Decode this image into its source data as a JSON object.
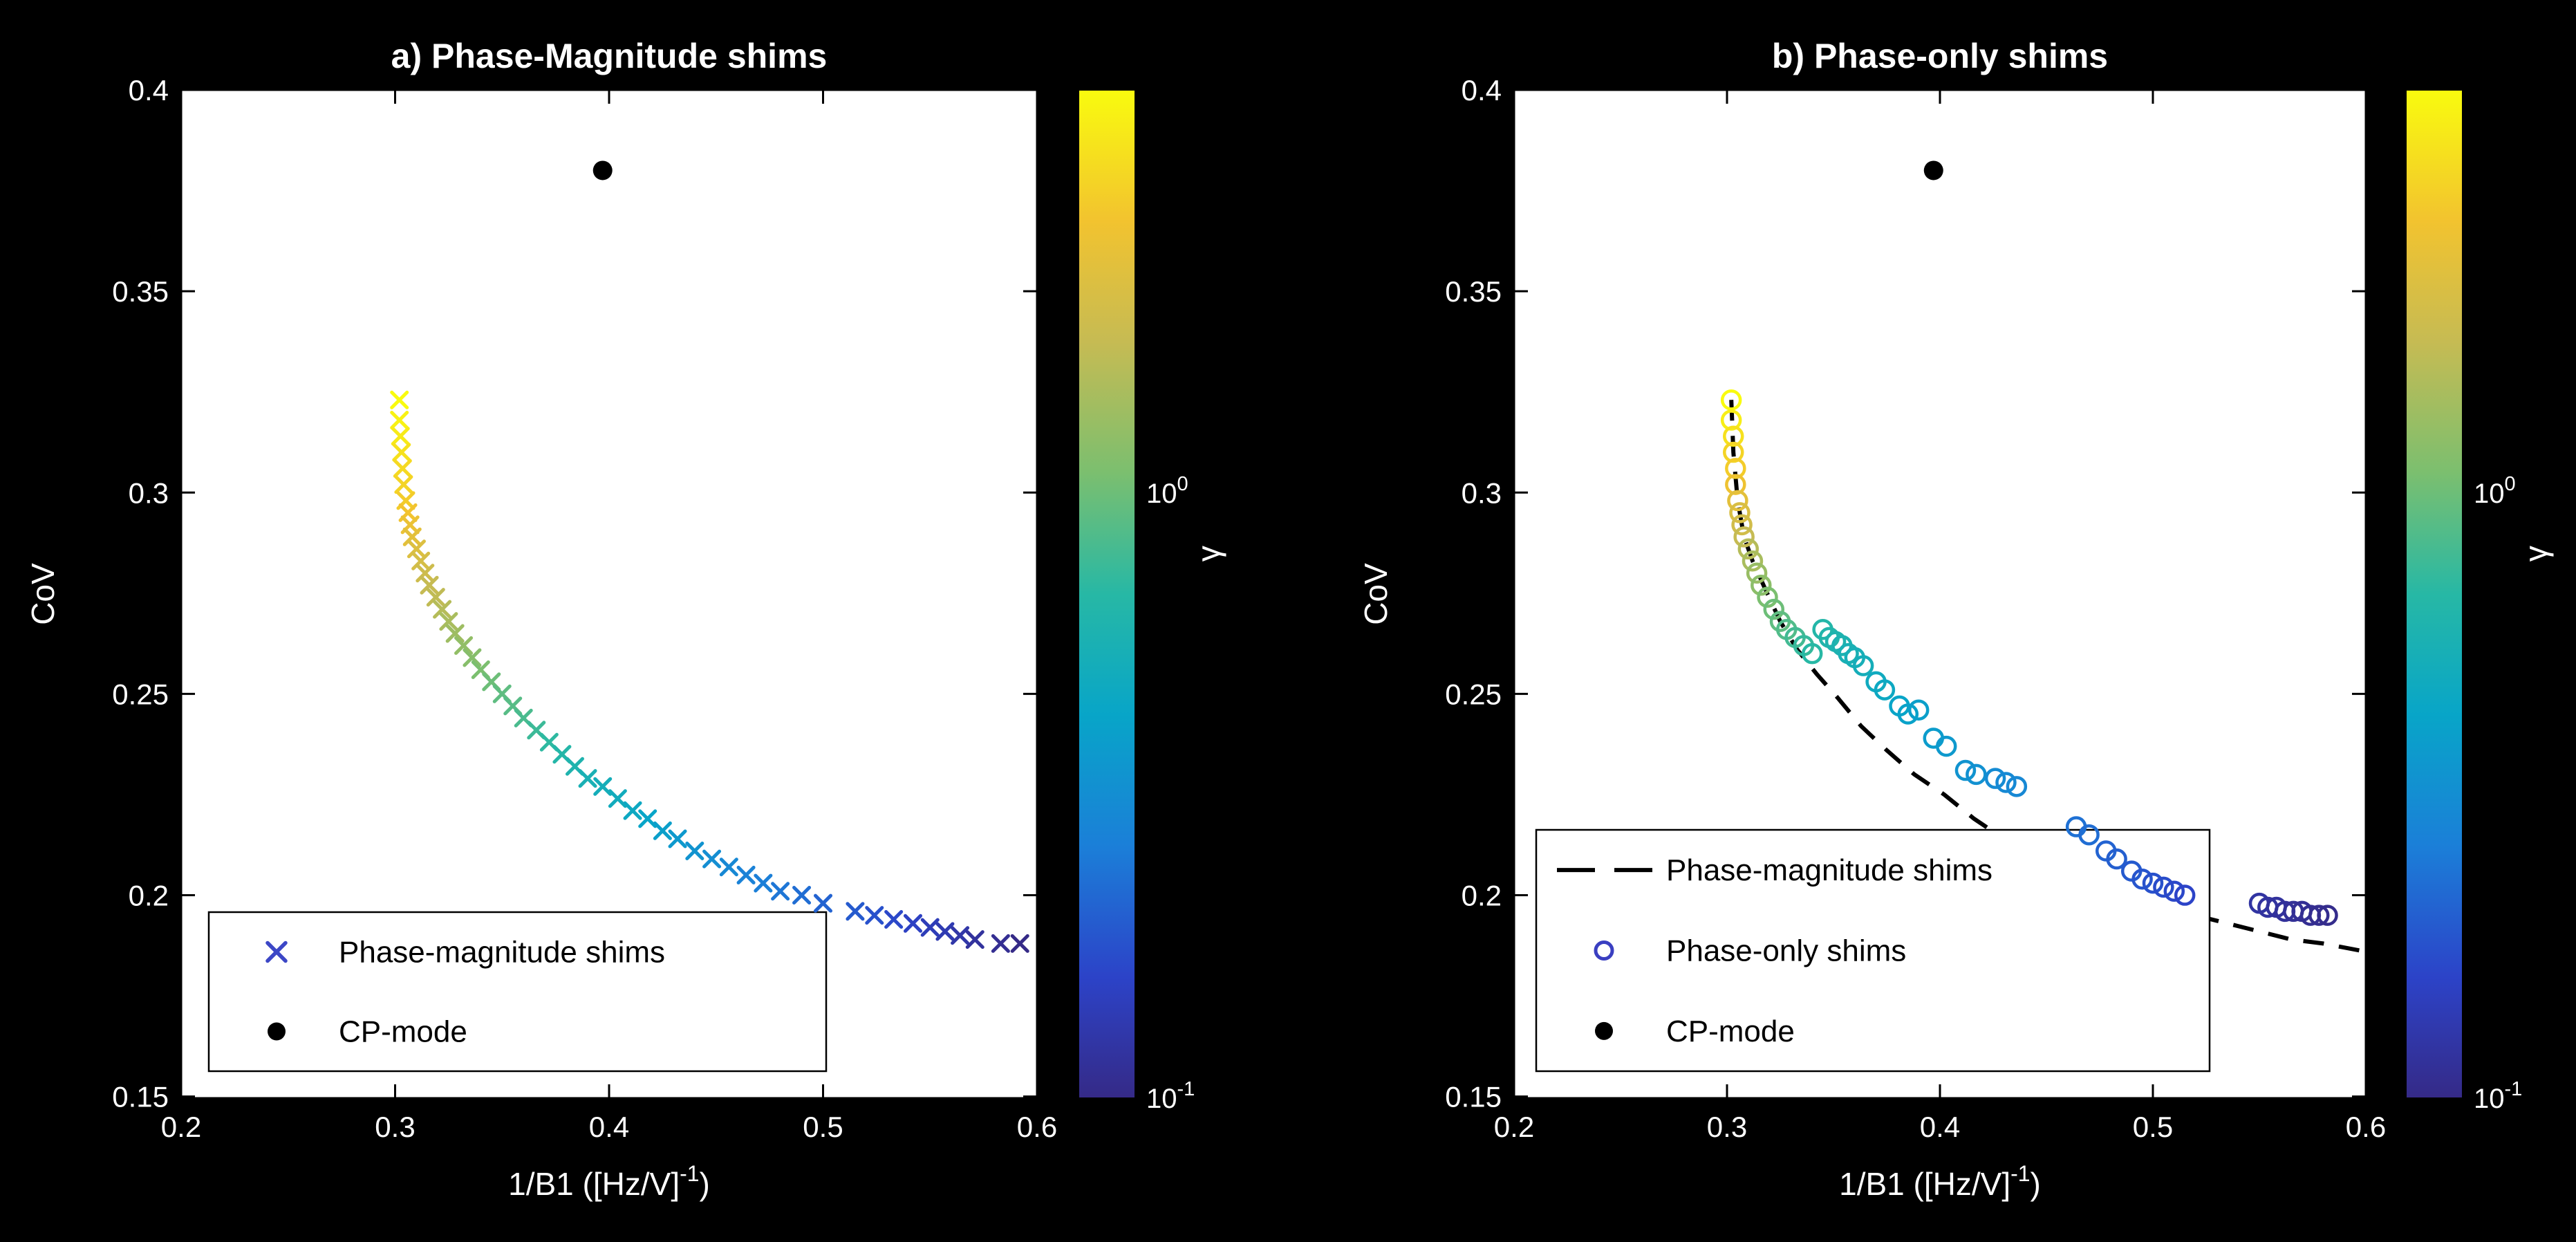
{
  "figure": {
    "background": "#000000",
    "text_color": "#ffffff",
    "axes_background": "#ffffff",
    "axes_line_color": "#000000"
  },
  "colormap": [
    {
      "t": 0.0,
      "c": "#352a87"
    },
    {
      "t": 0.12,
      "c": "#2c43c8"
    },
    {
      "t": 0.25,
      "c": "#1b7fd8"
    },
    {
      "t": 0.38,
      "c": "#08a5c8"
    },
    {
      "t": 0.5,
      "c": "#27b8a5"
    },
    {
      "t": 0.62,
      "c": "#7bbf6f"
    },
    {
      "t": 0.75,
      "c": "#c6bb53"
    },
    {
      "t": 0.87,
      "c": "#f2c32f"
    },
    {
      "t": 1.0,
      "c": "#f9fb0e"
    }
  ],
  "chart_data": [
    {
      "type": "scatter",
      "title": "a) Phase-Magnitude shims",
      "xlabel": {
        "text": "1/B1 ([Hz/V]",
        "sup": "-1",
        "suffix": ")"
      },
      "ylabel": "CoV",
      "xlim": [
        0.2,
        0.6
      ],
      "ylim": [
        0.1496,
        0.4
      ],
      "xticks": [
        0.2,
        0.3,
        0.4,
        0.5,
        0.6
      ],
      "yticks": [
        0.15,
        0.2,
        0.25,
        0.3,
        0.35,
        0.4
      ],
      "xtick_labels": [
        "0.2",
        "0.3",
        "0.4",
        "0.5",
        "0.6"
      ],
      "ytick_labels": [
        "0.15",
        "0.2",
        "0.25",
        "0.3",
        "0.35",
        "0.4"
      ],
      "series": [
        {
          "name": "Phase-magnitude shims",
          "marker": "x",
          "points": [
            [
              0.302,
              0.323,
              1.0
            ],
            [
              0.302,
              0.318,
              0.98
            ],
            [
              0.3025,
              0.314,
              0.96
            ],
            [
              0.303,
              0.31,
              0.94
            ],
            [
              0.3035,
              0.306,
              0.92
            ],
            [
              0.304,
              0.302,
              0.91
            ],
            [
              0.305,
              0.298,
              0.89
            ],
            [
              0.306,
              0.295,
              0.87
            ],
            [
              0.307,
              0.292,
              0.85
            ],
            [
              0.308,
              0.289,
              0.83
            ],
            [
              0.31,
              0.286,
              0.81
            ],
            [
              0.312,
              0.283,
              0.79
            ],
            [
              0.314,
              0.28,
              0.77
            ],
            [
              0.316,
              0.277,
              0.75
            ],
            [
              0.319,
              0.274,
              0.74
            ],
            [
              0.322,
              0.271,
              0.72
            ],
            [
              0.325,
              0.268,
              0.7
            ],
            [
              0.328,
              0.265,
              0.68
            ],
            [
              0.332,
              0.262,
              0.66
            ],
            [
              0.336,
              0.259,
              0.64
            ],
            [
              0.34,
              0.256,
              0.62
            ],
            [
              0.345,
              0.253,
              0.6
            ],
            [
              0.35,
              0.25,
              0.58
            ],
            [
              0.355,
              0.247,
              0.57
            ],
            [
              0.36,
              0.244,
              0.55
            ],
            [
              0.366,
              0.241,
              0.53
            ],
            [
              0.372,
              0.238,
              0.51
            ],
            [
              0.378,
              0.235,
              0.49
            ],
            [
              0.384,
              0.232,
              0.47
            ],
            [
              0.39,
              0.229,
              0.45
            ],
            [
              0.397,
              0.227,
              0.43
            ],
            [
              0.404,
              0.224,
              0.42
            ],
            [
              0.411,
              0.221,
              0.4
            ],
            [
              0.418,
              0.219,
              0.38
            ],
            [
              0.425,
              0.216,
              0.36
            ],
            [
              0.432,
              0.214,
              0.34
            ],
            [
              0.44,
              0.211,
              0.32
            ],
            [
              0.448,
              0.209,
              0.3
            ],
            [
              0.456,
              0.207,
              0.28
            ],
            [
              0.464,
              0.205,
              0.26
            ],
            [
              0.472,
              0.203,
              0.25
            ],
            [
              0.48,
              0.201,
              0.23
            ],
            [
              0.49,
              0.2,
              0.21
            ],
            [
              0.5,
              0.198,
              0.19
            ],
            [
              0.515,
              0.196,
              0.17
            ],
            [
              0.524,
              0.195,
              0.15
            ],
            [
              0.533,
              0.194,
              0.13
            ],
            [
              0.542,
              0.193,
              0.11
            ],
            [
              0.55,
              0.192,
              0.09
            ],
            [
              0.557,
              0.191,
              0.08
            ],
            [
              0.564,
              0.19,
              0.06
            ],
            [
              0.571,
              0.189,
              0.04
            ],
            [
              0.583,
              0.188,
              0.02
            ],
            [
              0.592,
              0.188,
              0.0
            ]
          ]
        },
        {
          "name": "CP-mode",
          "marker": "dot",
          "color": "#000000",
          "points": [
            [
              0.397,
              0.38
            ]
          ]
        }
      ],
      "legend": {
        "entries": [
          {
            "marker": "x",
            "color": "#3c47c6",
            "label": "Phase-magnitude shims"
          },
          {
            "marker": "dot",
            "color": "#000000",
            "label": "CP-mode"
          }
        ]
      },
      "colorbar": {
        "label": "γ",
        "ticks": [
          {
            "t": 0.6,
            "base": "10",
            "exp": "0"
          },
          {
            "t": 0.0,
            "base": "10",
            "exp": "-1"
          }
        ]
      }
    },
    {
      "type": "scatter",
      "title": "b) Phase-only shims",
      "xlabel": {
        "text": "1/B1 ([Hz/V]",
        "sup": "-1",
        "suffix": ")"
      },
      "ylabel": "CoV",
      "xlim": [
        0.2,
        0.6
      ],
      "ylim": [
        0.1496,
        0.4
      ],
      "xticks": [
        0.2,
        0.3,
        0.4,
        0.5,
        0.6
      ],
      "yticks": [
        0.15,
        0.2,
        0.25,
        0.3,
        0.35,
        0.4
      ],
      "xtick_labels": [
        "0.2",
        "0.3",
        "0.4",
        "0.5",
        "0.6"
      ],
      "ytick_labels": [
        "0.15",
        "0.2",
        "0.25",
        "0.3",
        "0.35",
        "0.4"
      ],
      "series": [
        {
          "name": "Phase-magnitude shims",
          "type": "dashed_line",
          "color": "#000000",
          "points": [
            [
              0.302,
              0.323
            ],
            [
              0.303,
              0.31
            ],
            [
              0.305,
              0.298
            ],
            [
              0.308,
              0.289
            ],
            [
              0.312,
              0.283
            ],
            [
              0.318,
              0.276
            ],
            [
              0.325,
              0.268
            ],
            [
              0.333,
              0.261
            ],
            [
              0.342,
              0.255
            ],
            [
              0.352,
              0.249
            ],
            [
              0.363,
              0.242
            ],
            [
              0.375,
              0.236
            ],
            [
              0.388,
              0.23
            ],
            [
              0.402,
              0.225
            ],
            [
              0.416,
              0.219
            ],
            [
              0.43,
              0.214
            ],
            [
              0.445,
              0.21
            ],
            [
              0.46,
              0.206
            ],
            [
              0.475,
              0.202
            ],
            [
              0.49,
              0.199
            ],
            [
              0.505,
              0.197
            ],
            [
              0.52,
              0.195
            ],
            [
              0.535,
              0.193
            ],
            [
              0.55,
              0.191
            ],
            [
              0.565,
              0.189
            ],
            [
              0.58,
              0.188
            ],
            [
              0.6,
              0.186
            ]
          ]
        },
        {
          "name": "Phase-only shims",
          "marker": "o",
          "points": [
            [
              0.302,
              0.323,
              1.0
            ],
            [
              0.302,
              0.318,
              0.97
            ],
            [
              0.303,
              0.314,
              0.94
            ],
            [
              0.303,
              0.31,
              0.91
            ],
            [
              0.304,
              0.306,
              0.89
            ],
            [
              0.304,
              0.302,
              0.86
            ],
            [
              0.305,
              0.298,
              0.83
            ],
            [
              0.306,
              0.295,
              0.8
            ],
            [
              0.307,
              0.292,
              0.78
            ],
            [
              0.308,
              0.289,
              0.75
            ],
            [
              0.31,
              0.286,
              0.72
            ],
            [
              0.312,
              0.283,
              0.7
            ],
            [
              0.314,
              0.28,
              0.67
            ],
            [
              0.316,
              0.277,
              0.65
            ],
            [
              0.319,
              0.274,
              0.62
            ],
            [
              0.322,
              0.271,
              0.6
            ],
            [
              0.325,
              0.268,
              0.58
            ],
            [
              0.328,
              0.266,
              0.56
            ],
            [
              0.332,
              0.264,
              0.54
            ],
            [
              0.336,
              0.262,
              0.52
            ],
            [
              0.34,
              0.26,
              0.5
            ],
            [
              0.345,
              0.266,
              0.49
            ],
            [
              0.348,
              0.264,
              0.48
            ],
            [
              0.351,
              0.263,
              0.47
            ],
            [
              0.354,
              0.262,
              0.46
            ],
            [
              0.357,
              0.26,
              0.45
            ],
            [
              0.36,
              0.259,
              0.44
            ],
            [
              0.364,
              0.257,
              0.43
            ],
            [
              0.37,
              0.253,
              0.41
            ],
            [
              0.374,
              0.251,
              0.4
            ],
            [
              0.381,
              0.247,
              0.38
            ],
            [
              0.385,
              0.245,
              0.37
            ],
            [
              0.39,
              0.246,
              0.36
            ],
            [
              0.397,
              0.239,
              0.35
            ],
            [
              0.403,
              0.237,
              0.34
            ],
            [
              0.412,
              0.231,
              0.32
            ],
            [
              0.417,
              0.23,
              0.31
            ],
            [
              0.426,
              0.229,
              0.29
            ],
            [
              0.431,
              0.228,
              0.285
            ],
            [
              0.436,
              0.227,
              0.28
            ],
            [
              0.464,
              0.217,
              0.22
            ],
            [
              0.47,
              0.215,
              0.21
            ],
            [
              0.478,
              0.211,
              0.19
            ],
            [
              0.483,
              0.209,
              0.18
            ],
            [
              0.49,
              0.206,
              0.17
            ],
            [
              0.495,
              0.204,
              0.16
            ],
            [
              0.5,
              0.203,
              0.15
            ],
            [
              0.505,
              0.202,
              0.14
            ],
            [
              0.51,
              0.201,
              0.13
            ],
            [
              0.515,
              0.2,
              0.12
            ],
            [
              0.55,
              0.198,
              0.05
            ],
            [
              0.554,
              0.197,
              0.045
            ],
            [
              0.558,
              0.197,
              0.04
            ],
            [
              0.562,
              0.196,
              0.035
            ],
            [
              0.566,
              0.196,
              0.03
            ],
            [
              0.57,
              0.196,
              0.025
            ],
            [
              0.574,
              0.195,
              0.02
            ],
            [
              0.578,
              0.195,
              0.015
            ],
            [
              0.582,
              0.195,
              0.01
            ]
          ]
        },
        {
          "name": "CP-mode",
          "marker": "dot",
          "color": "#000000",
          "points": [
            [
              0.397,
              0.38
            ]
          ]
        }
      ],
      "legend": {
        "entries": [
          {
            "marker": "dash",
            "color": "#000000",
            "label": "Phase-magnitude shims"
          },
          {
            "marker": "o",
            "color": "#3a3fc1",
            "label": "Phase-only shims"
          },
          {
            "marker": "dot",
            "color": "#000000",
            "label": "CP-mode"
          }
        ]
      },
      "colorbar": {
        "label": "γ",
        "ticks": [
          {
            "t": 0.6,
            "base": "10",
            "exp": "0"
          },
          {
            "t": 0.0,
            "base": "10",
            "exp": "-1"
          }
        ]
      }
    }
  ]
}
